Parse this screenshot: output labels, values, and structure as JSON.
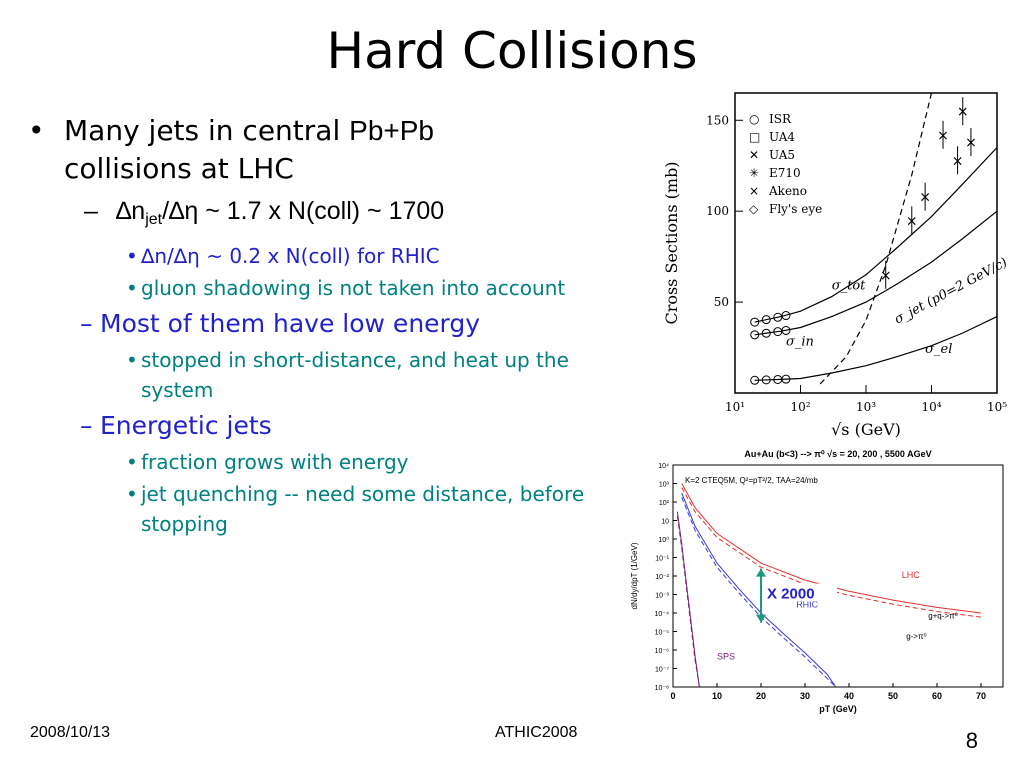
{
  "slide": {
    "title": "Hard Collisions",
    "date": "2008/10/13",
    "event": "ATHIC2008",
    "page": "8"
  },
  "bullets": {
    "b1": {
      "pre": "Many jets in central ",
      "tail": "Pb+Pb",
      "line2": "collisions at LHC"
    },
    "b1_1": {
      "delta": "∆n",
      "sub": "jet",
      "rest": "/∆η ~ 1.7 x N(coll) ~ 1700"
    },
    "b1_1_1": "∆n/∆η ~ 0.2 x N(coll) for RHIC",
    "b1_1_2": "gluon shadowing is not taken into account",
    "b1_2": "Most of them have low energy",
    "b1_2_1": "stopped in short-distance, and heat up the system",
    "b1_3": "Energetic jets",
    "b1_3_1": "fraction grows with energy",
    "b1_3_2": "jet quenching -- need some distance, before stopping"
  },
  "colors": {
    "teal": "#008080",
    "blue": "#2222cc",
    "lhc_red": "#e03030",
    "rhic_blue": "#3b3bd8",
    "sps_purple": "#7a1f7a",
    "arrow_green": "#1a9a7a"
  },
  "chart_data": [
    {
      "type": "scatter",
      "xlabel": "√s (GeV)",
      "ylabel": "Cross Sections (mb)",
      "x_scale": "log",
      "xlim": [
        10,
        100000
      ],
      "ylim": [
        0,
        165
      ],
      "x_ticks": [
        "10¹",
        "10²",
        "10³",
        "10⁴",
        "10⁵"
      ],
      "y_ticks": [
        50,
        100,
        150
      ],
      "legend": [
        "ISR",
        "UA4",
        "UA5",
        "E710",
        "Akeno",
        "Fly's eye"
      ],
      "curve_labels": [
        "σ_tot",
        "σ_in",
        "σ_jet (p0=2 GeV/c)",
        "σ_el"
      ],
      "series": [
        {
          "name": "σ_tot",
          "x": [
            20,
            50,
            100,
            300,
            1000,
            3000,
            10000,
            30000,
            100000
          ],
          "y": [
            39,
            42,
            45,
            53,
            65,
            80,
            97,
            115,
            135
          ]
        },
        {
          "name": "σ_in",
          "x": [
            20,
            50,
            100,
            300,
            1000,
            3000,
            10000,
            30000,
            100000
          ],
          "y": [
            32,
            34,
            36,
            42,
            50,
            60,
            72,
            85,
            100
          ]
        },
        {
          "name": "σ_el",
          "x": [
            20,
            50,
            100,
            300,
            1000,
            3000,
            10000,
            30000,
            100000
          ],
          "y": [
            7,
            7.5,
            8,
            11,
            15,
            20,
            26,
            33,
            42
          ]
        },
        {
          "name": "σ_jet",
          "x": [
            200,
            500,
            1000,
            2000,
            5000,
            10000
          ],
          "y": [
            5,
            20,
            40,
            70,
            120,
            170
          ]
        }
      ]
    },
    {
      "type": "line",
      "title": "Au+Au (b<3) --> π⁰  √s = 20, 200 , 5500 AGeV",
      "annotation": "K=2 CTEQ5M,  Q²=pT²/2, TAA=24/mb",
      "xlabel": "pT (GeV)",
      "ylabel": "dN/dy/dpT (1/GeV)",
      "xlim": [
        0,
        75
      ],
      "y_scale": "log",
      "ylim": [
        1e-08,
        10000.0
      ],
      "x_ticks": [
        0,
        10,
        20,
        30,
        40,
        50,
        60,
        70
      ],
      "y_ticks": [
        "10⁴",
        "10³",
        "10²",
        "10",
        "10⁰",
        "10⁻¹",
        "10⁻²",
        "10⁻³",
        "10⁻⁴",
        "10⁻⁵",
        "10⁻⁶",
        "10⁻⁷",
        "10⁻⁸"
      ],
      "series_labels": [
        "LHC",
        "RHIC",
        "SPS",
        "g+q->π⁰",
        "g->π⁰"
      ],
      "arrow_label": "X 2000",
      "series": [
        {
          "name": "LHC",
          "x": [
            2,
            5,
            10,
            20,
            30,
            40,
            50,
            60,
            70
          ],
          "y": [
            1000,
            50,
            2,
            0.05,
            0.006,
            0.0015,
            0.0005,
            0.0002,
            0.0001
          ]
        },
        {
          "name": "RHIC",
          "x": [
            2,
            5,
            10,
            15,
            20,
            25,
            30,
            35,
            37
          ],
          "y": [
            300,
            5,
            0.05,
            0.002,
            0.0001,
            8e-06,
            7e-07,
            5e-08,
            1e-08
          ]
        },
        {
          "name": "SPS",
          "x": [
            1,
            2,
            3,
            4,
            5,
            6
          ],
          "y": [
            30,
            0.5,
            0.005,
            5e-05,
            5e-07,
            1e-08
          ]
        }
      ]
    }
  ]
}
